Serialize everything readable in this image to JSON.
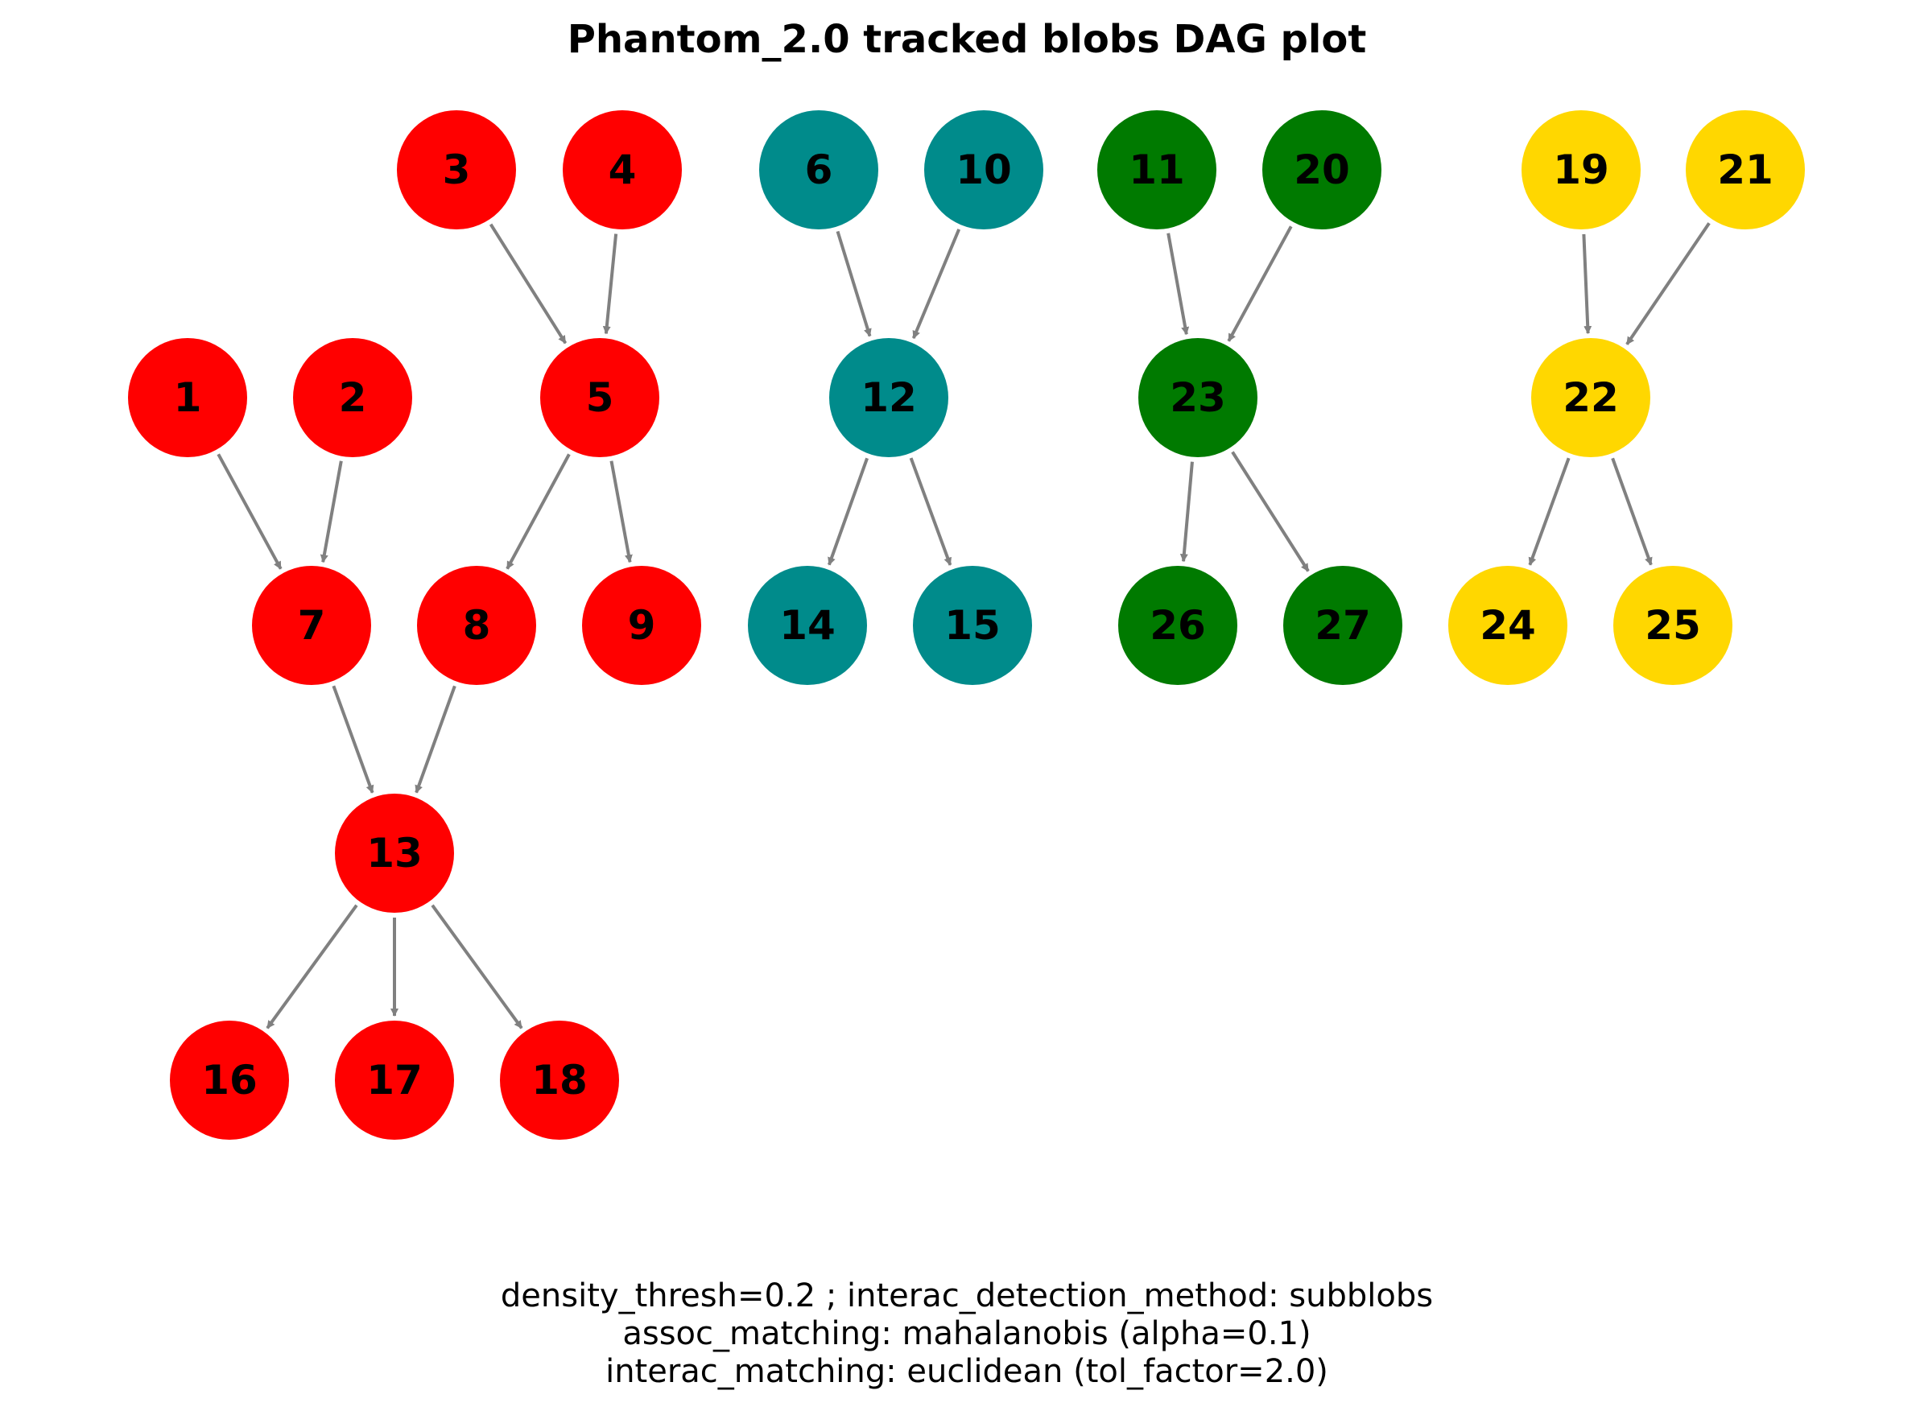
{
  "title": "Phantom_2.0 tracked blobs DAG plot",
  "caption_lines": [
    "density_thresh=0.2 ; interac_detection_method: subblobs",
    "assoc_matching: mahalanobis (alpha=0.1)",
    "interac_matching: euclidean (tol_factor=2.0)"
  ],
  "colors": {
    "red": "#ff0000",
    "teal": "#008b8b",
    "green": "#007a00",
    "gold": "#ffd700",
    "edge": "#808080"
  },
  "nodes": [
    {
      "id": "1",
      "color": "red"
    },
    {
      "id": "2",
      "color": "red"
    },
    {
      "id": "3",
      "color": "red"
    },
    {
      "id": "4",
      "color": "red"
    },
    {
      "id": "5",
      "color": "red"
    },
    {
      "id": "6",
      "color": "teal"
    },
    {
      "id": "7",
      "color": "red"
    },
    {
      "id": "8",
      "color": "red"
    },
    {
      "id": "9",
      "color": "red"
    },
    {
      "id": "10",
      "color": "teal"
    },
    {
      "id": "11",
      "color": "green"
    },
    {
      "id": "12",
      "color": "teal"
    },
    {
      "id": "13",
      "color": "red"
    },
    {
      "id": "14",
      "color": "teal"
    },
    {
      "id": "15",
      "color": "teal"
    },
    {
      "id": "16",
      "color": "red"
    },
    {
      "id": "17",
      "color": "red"
    },
    {
      "id": "18",
      "color": "red"
    },
    {
      "id": "19",
      "color": "gold"
    },
    {
      "id": "20",
      "color": "green"
    },
    {
      "id": "21",
      "color": "gold"
    },
    {
      "id": "22",
      "color": "gold"
    },
    {
      "id": "23",
      "color": "green"
    },
    {
      "id": "24",
      "color": "gold"
    },
    {
      "id": "25",
      "color": "gold"
    },
    {
      "id": "26",
      "color": "green"
    },
    {
      "id": "27",
      "color": "green"
    }
  ],
  "edges": [
    [
      "3",
      "5"
    ],
    [
      "4",
      "5"
    ],
    [
      "1",
      "7"
    ],
    [
      "2",
      "7"
    ],
    [
      "5",
      "8"
    ],
    [
      "5",
      "9"
    ],
    [
      "7",
      "13"
    ],
    [
      "8",
      "13"
    ],
    [
      "13",
      "16"
    ],
    [
      "13",
      "17"
    ],
    [
      "13",
      "18"
    ],
    [
      "6",
      "12"
    ],
    [
      "10",
      "12"
    ],
    [
      "12",
      "14"
    ],
    [
      "12",
      "15"
    ],
    [
      "11",
      "23"
    ],
    [
      "20",
      "23"
    ],
    [
      "23",
      "26"
    ],
    [
      "23",
      "27"
    ],
    [
      "19",
      "22"
    ],
    [
      "21",
      "22"
    ],
    [
      "22",
      "24"
    ],
    [
      "22",
      "25"
    ]
  ]
}
